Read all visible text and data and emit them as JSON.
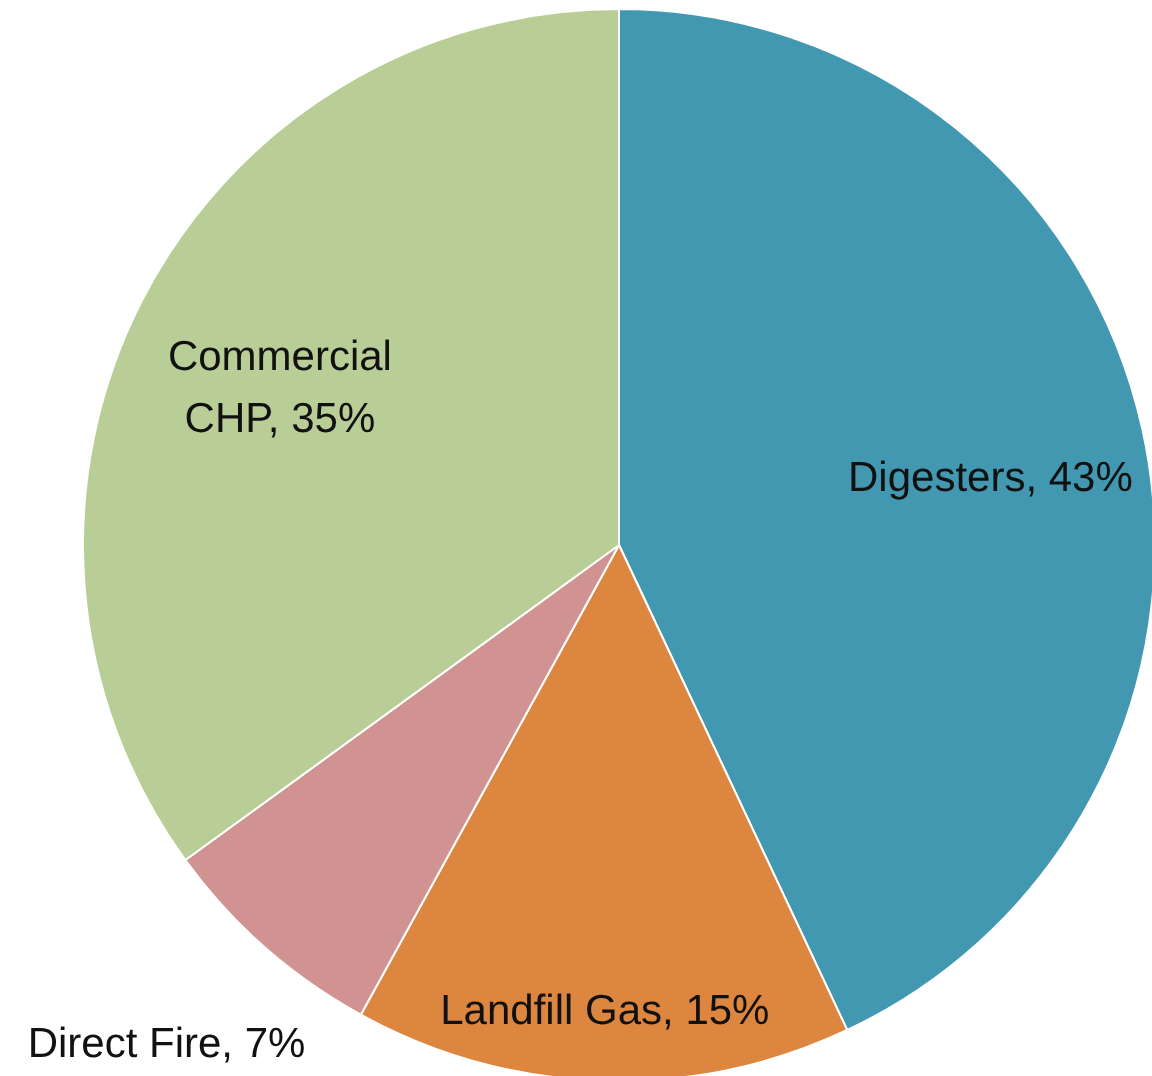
{
  "chart_data": {
    "type": "pie",
    "categories": [
      "Digesters",
      "Landfill Gas",
      "Direct Fire",
      "Commercial CHP"
    ],
    "values": [
      43,
      15,
      7,
      35
    ],
    "colors": [
      "#4298b0",
      "#dc8640",
      "#d09392",
      "#b9cd96"
    ],
    "value_labels": [
      "43%",
      "15%",
      "7%",
      "35%"
    ]
  }
}
